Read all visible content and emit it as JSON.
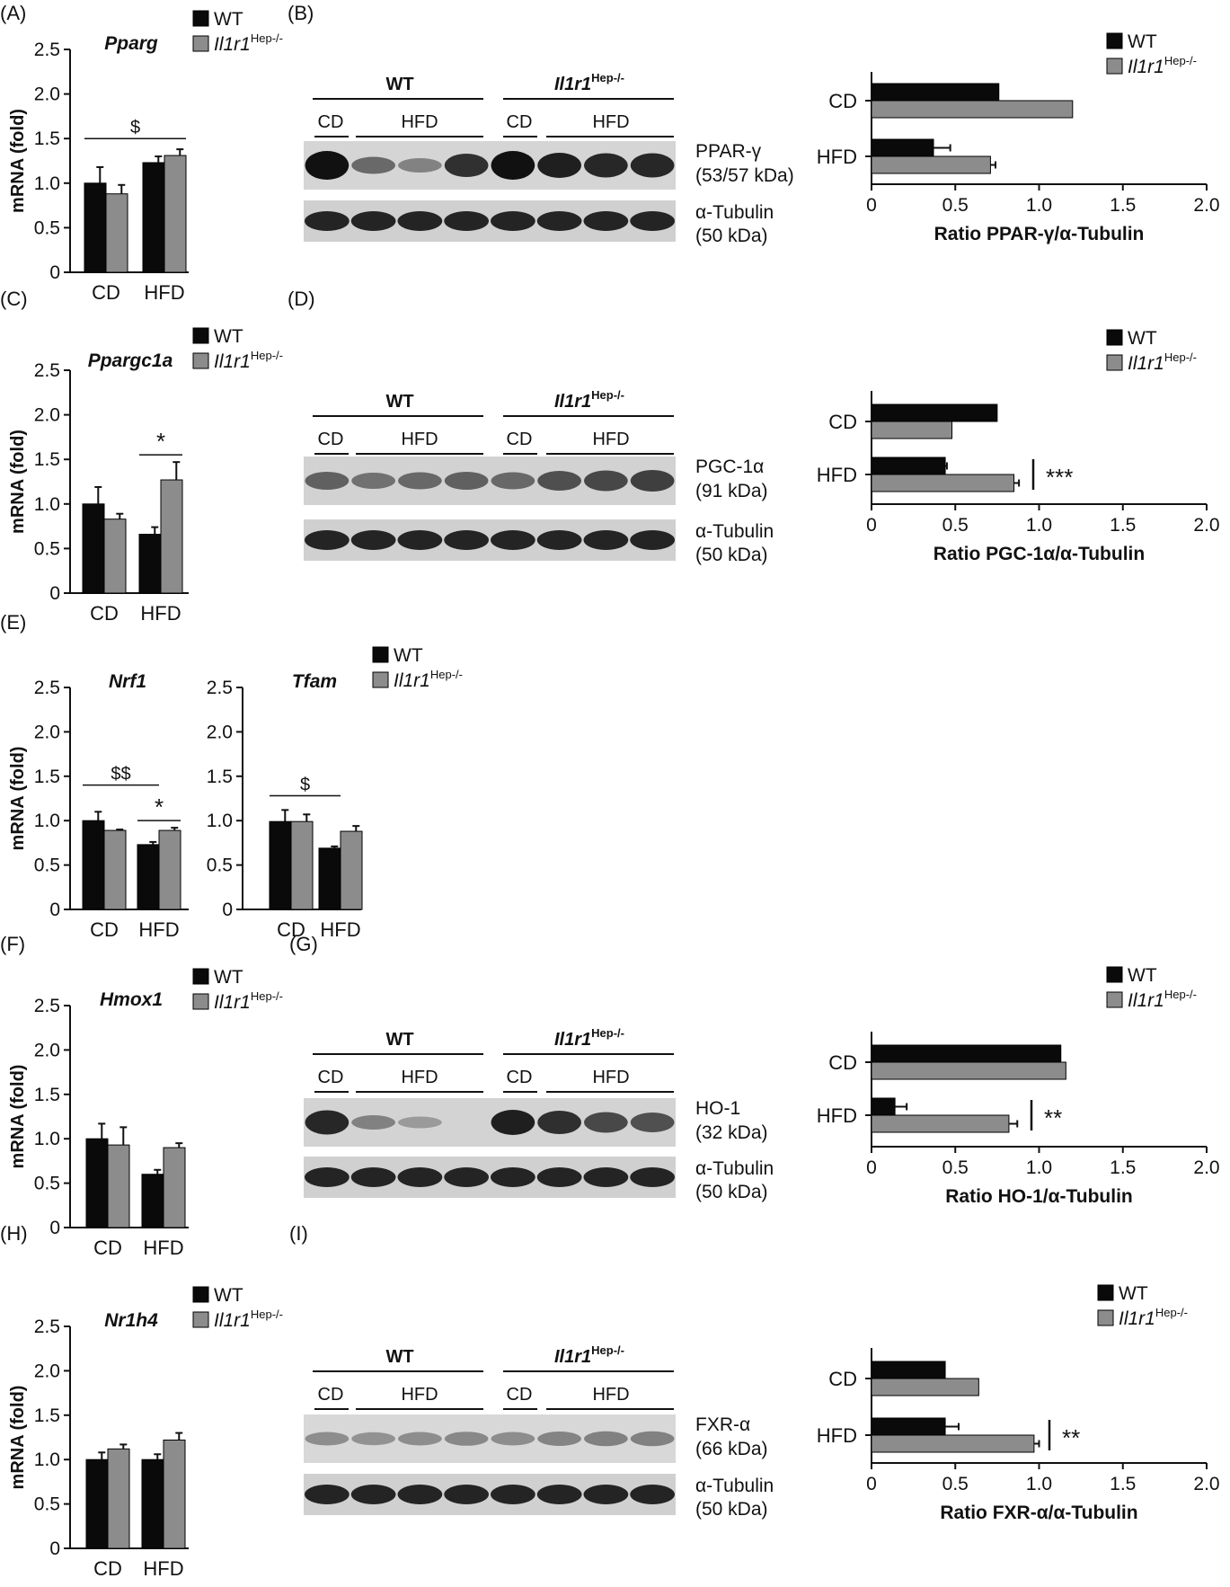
{
  "legend": {
    "wt": "WT",
    "ko": "Il1r1",
    "ko_sup": "Hep-/-"
  },
  "colors": {
    "wt": "#0a0a0a",
    "ko": "#8c8c8c",
    "axis": "#111111"
  },
  "panel_labels": [
    "(A)",
    "(B)",
    "(C)",
    "(D)",
    "(E)",
    "(F)",
    "(G)",
    "(H)",
    "(I)"
  ],
  "blot_headers": {
    "wt": "WT",
    "ko": "Il1r1",
    "ko_sup": "Hep-/-",
    "cd": "CD",
    "hfd": "HFD"
  },
  "blots": [
    {
      "id": "B",
      "protein": "PPAR-γ",
      "protein_kda": "(53/57 kDa)",
      "loading": "α-Tubulin",
      "loading_kda": "(50 kDa)"
    },
    {
      "id": "D",
      "protein": "PGC-1α",
      "protein_kda": "(91 kDa)",
      "loading": "α-Tubulin",
      "loading_kda": "(50 kDa)"
    },
    {
      "id": "G",
      "protein": "HO-1",
      "protein_kda": "(32 kDa)",
      "loading": "α-Tubulin",
      "loading_kda": "(50 kDa)"
    },
    {
      "id": "I",
      "protein": "FXR-α",
      "protein_kda": "(66 kDa)",
      "loading": "α-Tubulin",
      "loading_kda": "(50 kDa)"
    }
  ],
  "chart_data": [
    {
      "id": "A",
      "type": "bar",
      "title": "Pparg",
      "ylabel": "mRNA (fold)",
      "ylim": [
        0,
        2.5
      ],
      "yticks": [
        "0",
        "0.5",
        "1.0",
        "1.5",
        "2.0",
        "2.5"
      ],
      "categories": [
        "CD",
        "HFD"
      ],
      "series": [
        {
          "name": "WT",
          "values": [
            1.0,
            1.23
          ],
          "errors": [
            0.18,
            0.07
          ]
        },
        {
          "name": "Il1r1Hep-/-",
          "values": [
            0.88,
            1.31
          ],
          "errors": [
            0.1,
            0.07
          ]
        }
      ],
      "annotations": [
        {
          "text": "$",
          "type": "bracket",
          "from": "CD-WT",
          "to": "HFD-KO"
        }
      ]
    },
    {
      "id": "B-quant",
      "type": "bar",
      "orientation": "horizontal",
      "xlabel": "Ratio PPAR-γ/α-Tubulin",
      "xlim": [
        0,
        2.0
      ],
      "xticks": [
        "0",
        "0.5",
        "1.0",
        "1.5",
        "2.0"
      ],
      "categories": [
        "CD",
        "HFD"
      ],
      "series": [
        {
          "name": "WT",
          "values": [
            0.76,
            0.37
          ],
          "errors": [
            0,
            0.1
          ]
        },
        {
          "name": "Il1r1Hep-/-",
          "values": [
            1.2,
            0.71
          ],
          "errors": [
            0,
            0.03
          ]
        }
      ],
      "annotations": []
    },
    {
      "id": "C",
      "type": "bar",
      "title": "Ppargc1a",
      "ylabel": "mRNA (fold)",
      "ylim": [
        0,
        2.5
      ],
      "yticks": [
        "0",
        "0.5",
        "1.0",
        "1.5",
        "2.0",
        "2.5"
      ],
      "categories": [
        "CD",
        "HFD"
      ],
      "series": [
        {
          "name": "WT",
          "values": [
            1.0,
            0.66
          ],
          "errors": [
            0.19,
            0.08
          ]
        },
        {
          "name": "Il1r1Hep-/-",
          "values": [
            0.83,
            1.27
          ],
          "errors": [
            0.06,
            0.2
          ]
        }
      ],
      "annotations": [
        {
          "text": "*",
          "type": "bracket",
          "from": "HFD-WT",
          "to": "HFD-KO"
        }
      ]
    },
    {
      "id": "D-quant",
      "type": "bar",
      "orientation": "horizontal",
      "xlabel": "Ratio PGC-1α/α-Tubulin",
      "xlim": [
        0,
        2.0
      ],
      "xticks": [
        "0",
        "0.5",
        "1.0",
        "1.5",
        "2.0"
      ],
      "categories": [
        "CD",
        "HFD"
      ],
      "series": [
        {
          "name": "WT",
          "values": [
            0.75,
            0.44
          ],
          "errors": [
            0,
            0.01
          ]
        },
        {
          "name": "Il1r1Hep-/-",
          "values": [
            0.48,
            0.85
          ],
          "errors": [
            0,
            0.03
          ]
        }
      ],
      "annotations": [
        {
          "text": "***",
          "type": "bar",
          "category": "HFD"
        }
      ]
    },
    {
      "id": "E-Nrf1",
      "type": "bar",
      "title": "Nrf1",
      "ylabel": "mRNA (fold)",
      "ylim": [
        0,
        2.5
      ],
      "yticks": [
        "0",
        "0.5",
        "1.0",
        "1.5",
        "2.0",
        "2.5"
      ],
      "categories": [
        "CD",
        "HFD"
      ],
      "series": [
        {
          "name": "WT",
          "values": [
            1.0,
            0.73
          ],
          "errors": [
            0.1,
            0.03
          ]
        },
        {
          "name": "Il1r1Hep-/-",
          "values": [
            0.89,
            0.89
          ],
          "errors": [
            0.01,
            0.03
          ]
        }
      ],
      "annotations": [
        {
          "text": "$$",
          "type": "bracket",
          "from": "CD-WT",
          "to": "HFD-WT"
        },
        {
          "text": "*",
          "type": "bracket",
          "from": "HFD-WT",
          "to": "HFD-KO"
        }
      ]
    },
    {
      "id": "E-Tfam",
      "type": "bar",
      "title": "Tfam",
      "ylabel": "",
      "ylim": [
        0,
        2.5
      ],
      "yticks": [
        "0",
        "0.5",
        "1.0",
        "1.5",
        "2.0",
        "2.5"
      ],
      "categories": [
        "CD",
        "HFD"
      ],
      "series": [
        {
          "name": "WT",
          "values": [
            0.99,
            0.69
          ],
          "errors": [
            0.13,
            0.02
          ]
        },
        {
          "name": "Il1r1Hep-/-",
          "values": [
            0.99,
            0.88
          ],
          "errors": [
            0.08,
            0.06
          ]
        }
      ],
      "annotations": [
        {
          "text": "$",
          "type": "bracket",
          "from": "CD-WT",
          "to": "HFD-WT"
        }
      ]
    },
    {
      "id": "F",
      "type": "bar",
      "title": "Hmox1",
      "ylabel": "mRNA (fold)",
      "ylim": [
        0,
        2.5
      ],
      "yticks": [
        "0",
        "0.5",
        "1.0",
        "1.5",
        "2.0",
        "2.5"
      ],
      "categories": [
        "CD",
        "HFD"
      ],
      "series": [
        {
          "name": "WT",
          "values": [
            1.0,
            0.6
          ],
          "errors": [
            0.17,
            0.05
          ]
        },
        {
          "name": "Il1r1Hep-/-",
          "values": [
            0.93,
            0.9
          ],
          "errors": [
            0.2,
            0.05
          ]
        }
      ],
      "annotations": []
    },
    {
      "id": "G-quant",
      "type": "bar",
      "orientation": "horizontal",
      "xlabel": "Ratio HO-1/α-Tubulin",
      "xlim": [
        0,
        2.0
      ],
      "xticks": [
        "0",
        "0.5",
        "1.0",
        "1.5",
        "2.0"
      ],
      "categories": [
        "CD",
        "HFD"
      ],
      "series": [
        {
          "name": "WT",
          "values": [
            1.13,
            0.14
          ],
          "errors": [
            0,
            0.07
          ]
        },
        {
          "name": "Il1r1Hep-/-",
          "values": [
            1.16,
            0.82
          ],
          "errors": [
            0,
            0.05
          ]
        }
      ],
      "annotations": [
        {
          "text": "**",
          "type": "bar",
          "category": "HFD"
        }
      ]
    },
    {
      "id": "H",
      "type": "bar",
      "title": "Nr1h4",
      "ylabel": "mRNA (fold)",
      "ylim": [
        0,
        2.5
      ],
      "yticks": [
        "0",
        "0.5",
        "1.0",
        "1.5",
        "2.0",
        "2.5"
      ],
      "categories": [
        "CD",
        "HFD"
      ],
      "series": [
        {
          "name": "WT",
          "values": [
            1.0,
            1.0
          ],
          "errors": [
            0.08,
            0.06
          ]
        },
        {
          "name": "Il1r1Hep-/-",
          "values": [
            1.12,
            1.22
          ],
          "errors": [
            0.05,
            0.08
          ]
        }
      ],
      "annotations": []
    },
    {
      "id": "I-quant",
      "type": "bar",
      "orientation": "horizontal",
      "xlabel": "Ratio FXR-α/α-Tubulin",
      "xlim": [
        0,
        2.0
      ],
      "xticks": [
        "0",
        "0.5",
        "1.0",
        "1.5",
        "2.0"
      ],
      "categories": [
        "CD",
        "HFD"
      ],
      "series": [
        {
          "name": "WT",
          "values": [
            0.44,
            0.44
          ],
          "errors": [
            0,
            0.08
          ]
        },
        {
          "name": "Il1r1Hep-/-",
          "values": [
            0.64,
            0.97
          ],
          "errors": [
            0,
            0.03
          ]
        }
      ],
      "annotations": [
        {
          "text": "**",
          "type": "bar",
          "category": "HFD"
        }
      ]
    }
  ]
}
